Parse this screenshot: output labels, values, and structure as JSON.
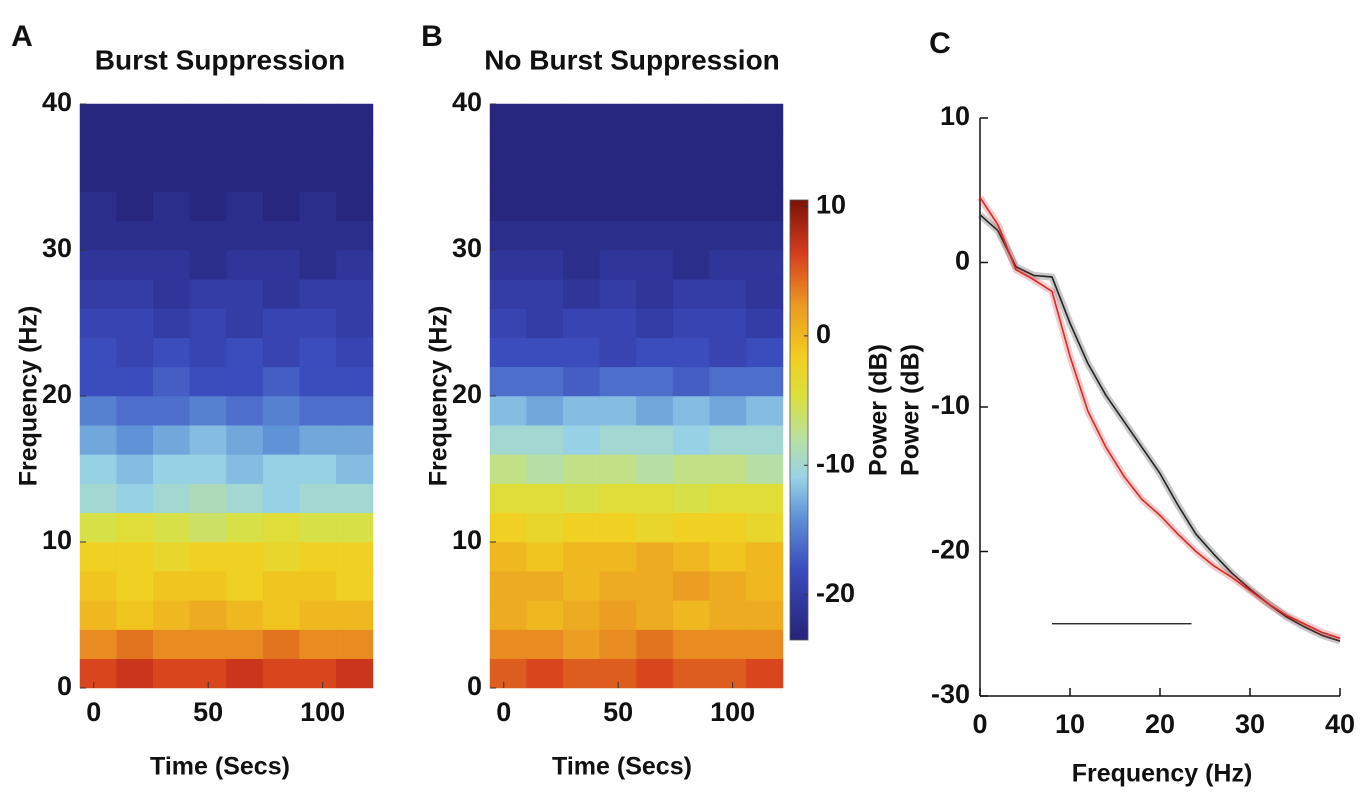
{
  "chart_data": [
    {
      "type": "heatmap",
      "panel_label": "A",
      "title": "Burst Suppression",
      "xlabel": "Time (Secs)",
      "ylabel": "Frequency (Hz)",
      "colormap": "jet",
      "zlim": [
        -23.5,
        10.5
      ],
      "x": [
        2,
        18,
        34,
        50,
        66,
        82,
        98,
        114
      ],
      "y": [
        1,
        3,
        5,
        7,
        9,
        11,
        13,
        15,
        17,
        19,
        21,
        23,
        25,
        27,
        29,
        31,
        33,
        35,
        37,
        39
      ],
      "z": [
        [
          6,
          7,
          6,
          6,
          7,
          6,
          6,
          7
        ],
        [
          3,
          4,
          3,
          3,
          3,
          4,
          3,
          3
        ],
        [
          0,
          -1,
          0,
          1,
          0,
          -1,
          0,
          0
        ],
        [
          -1,
          -2,
          -1,
          -1,
          -2,
          -1,
          -1,
          -2
        ],
        [
          -2,
          -2,
          -3,
          -2,
          -2,
          -3,
          -2,
          -2
        ],
        [
          -5,
          -4,
          -5,
          -6,
          -5,
          -4,
          -5,
          -5
        ],
        [
          -10,
          -11,
          -10,
          -9,
          -10,
          -11,
          -10,
          -10
        ],
        [
          -11,
          -12,
          -11,
          -11,
          -12,
          -11,
          -11,
          -12
        ],
        [
          -13,
          -14,
          -13,
          -12,
          -13,
          -14,
          -13,
          -13
        ],
        [
          -15,
          -16,
          -16,
          -15,
          -16,
          -15,
          -16,
          -16
        ],
        [
          -18,
          -18,
          -17,
          -18,
          -18,
          -17,
          -18,
          -18
        ],
        [
          -18,
          -19,
          -18,
          -19,
          -18,
          -19,
          -18,
          -19
        ],
        [
          -19,
          -19,
          -20,
          -19,
          -20,
          -19,
          -19,
          -20
        ],
        [
          -20,
          -20,
          -21,
          -20,
          -20,
          -21,
          -20,
          -20
        ],
        [
          -21,
          -21,
          -21,
          -22,
          -21,
          -21,
          -22,
          -21
        ],
        [
          -22,
          -22,
          -22,
          -22,
          -22,
          -22,
          -22,
          -22
        ],
        [
          -22,
          -23,
          -22,
          -23,
          -22,
          -23,
          -22,
          -23
        ],
        [
          -23,
          -23,
          -23,
          -23,
          -23,
          -23,
          -23,
          -23
        ],
        [
          -23,
          -23,
          -23,
          -23,
          -23,
          -23,
          -23,
          -23
        ],
        [
          -23,
          -23,
          -23,
          -23,
          -23,
          -23,
          -23,
          -23
        ]
      ],
      "xlim": [
        -6,
        122
      ],
      "xticks": [
        0,
        50,
        100
      ],
      "ylim": [
        0,
        40
      ],
      "yticks": [
        0,
        10,
        20,
        30,
        40
      ]
    },
    {
      "type": "heatmap",
      "panel_label": "B",
      "title": "No Burst Suppression",
      "xlabel": "Time (Secs)",
      "ylabel": "Frequency (Hz)",
      "colormap": "jet",
      "zlim": [
        -23.5,
        10.5
      ],
      "x": [
        2,
        18,
        34,
        50,
        66,
        82,
        98,
        114
      ],
      "y": [
        1,
        3,
        5,
        7,
        9,
        11,
        13,
        15,
        17,
        19,
        21,
        23,
        25,
        27,
        29,
        31,
        33,
        35,
        37,
        39
      ],
      "z": [
        [
          5,
          6,
          5,
          5,
          6,
          5,
          5,
          6
        ],
        [
          3,
          3,
          2,
          3,
          4,
          3,
          3,
          3
        ],
        [
          1,
          0,
          1,
          2,
          1,
          0,
          1,
          1
        ],
        [
          1,
          1,
          0,
          1,
          1,
          2,
          1,
          0
        ],
        [
          0,
          -1,
          0,
          0,
          1,
          0,
          -1,
          0
        ],
        [
          -2,
          -3,
          -2,
          -2,
          -3,
          -2,
          -2,
          -3
        ],
        [
          -4,
          -4,
          -5,
          -4,
          -4,
          -5,
          -4,
          -4
        ],
        [
          -7,
          -8,
          -7,
          -7,
          -8,
          -7,
          -7,
          -8
        ],
        [
          -10,
          -10,
          -11,
          -10,
          -10,
          -11,
          -10,
          -10
        ],
        [
          -12,
          -13,
          -12,
          -12,
          -13,
          -12,
          -13,
          -12
        ],
        [
          -16,
          -16,
          -17,
          -16,
          -16,
          -17,
          -16,
          -16
        ],
        [
          -18,
          -18,
          -18,
          -19,
          -18,
          -18,
          -19,
          -18
        ],
        [
          -19,
          -20,
          -19,
          -19,
          -20,
          -19,
          -19,
          -20
        ],
        [
          -20,
          -20,
          -21,
          -20,
          -21,
          -20,
          -20,
          -21
        ],
        [
          -21,
          -21,
          -22,
          -21,
          -21,
          -22,
          -21,
          -21
        ],
        [
          -22,
          -22,
          -22,
          -22,
          -22,
          -22,
          -22,
          -22
        ],
        [
          -23,
          -23,
          -23,
          -23,
          -23,
          -23,
          -23,
          -23
        ],
        [
          -23,
          -23,
          -23,
          -23,
          -23,
          -23,
          -23,
          -23
        ],
        [
          -23,
          -23,
          -23,
          -23,
          -23,
          -23,
          -23,
          -23
        ],
        [
          -23,
          -23,
          -23,
          -23,
          -23,
          -23,
          -23,
          -23
        ]
      ],
      "xlim": [
        -6,
        122
      ],
      "xticks": [
        0,
        50,
        100
      ],
      "ylim": [
        0,
        40
      ],
      "yticks": [
        0,
        10,
        20,
        30,
        40
      ],
      "colorbar": {
        "label": "Power (dB)",
        "zticks": [
          -20,
          -10,
          0,
          10
        ]
      }
    },
    {
      "type": "line",
      "panel_label": "C",
      "xlabel": "Frequency (Hz)",
      "ylabel": "Power (dB)",
      "x": [
        0,
        2,
        4,
        6,
        8,
        10,
        12,
        14,
        16,
        18,
        20,
        22,
        24,
        26,
        28,
        30,
        32,
        34,
        36,
        38,
        40
      ],
      "series": [
        {
          "color": "#222222",
          "values": [
            3.3,
            2.2,
            -0.3,
            -0.9,
            -1.0,
            -4.2,
            -7.0,
            -9.2,
            -11.0,
            -12.8,
            -14.6,
            -16.8,
            -18.8,
            -20.2,
            -21.5,
            -22.6,
            -23.6,
            -24.5,
            -25.2,
            -25.8,
            -26.2
          ]
        },
        {
          "color": "#d42a2a",
          "values": [
            4.5,
            2.6,
            -0.5,
            -1.2,
            -2.0,
            -6.5,
            -10.3,
            -12.8,
            -14.8,
            -16.4,
            -17.5,
            -18.8,
            -20.0,
            -21.0,
            -21.8,
            -22.7,
            -23.6,
            -24.4,
            -25.0,
            -25.6,
            -26.0
          ]
        }
      ],
      "significance_bar": {
        "x": [
          8,
          23.5
        ],
        "y": -25
      },
      "xlim": [
        0,
        40
      ],
      "xticks": [
        0,
        10,
        20,
        30,
        40
      ],
      "ylim": [
        -30,
        10
      ],
      "yticks": [
        -30,
        -20,
        -10,
        0,
        10
      ]
    }
  ]
}
